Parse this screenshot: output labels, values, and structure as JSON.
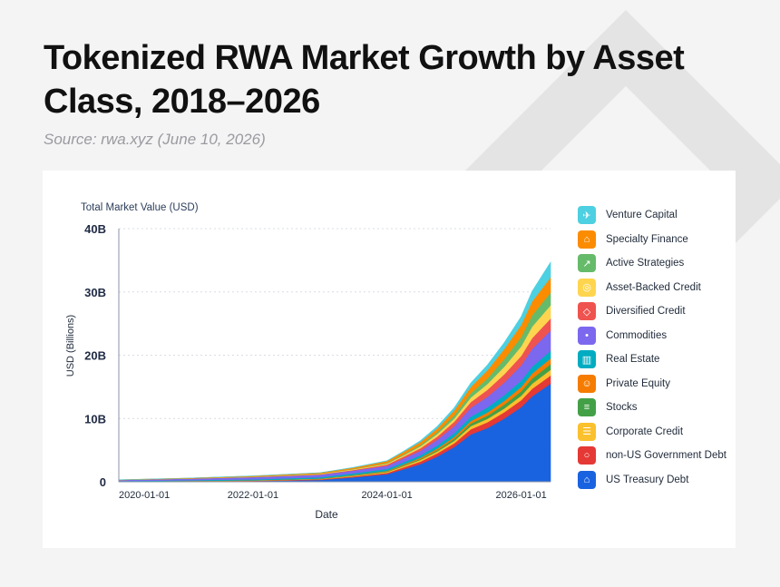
{
  "page": {
    "title": "Tokenized RWA Market Growth by Asset Class, 2018–2026",
    "subtitle": "Source: rwa.xyz (June 10, 2026)"
  },
  "chart_data": {
    "type": "area",
    "stacked": true,
    "title": "Tokenized RWA Market Growth by Asset Class, 2018–2026",
    "subtitle": "Source: rwa.xyz (June 10, 2026)",
    "header_label": "Total Market Value (USD)",
    "xlabel": "Date",
    "ylabel": "USD (Billions)",
    "xlim": [
      "2020-01-01",
      "2026-06-10"
    ],
    "ylim": [
      0,
      40
    ],
    "x_ticks": [
      "2020-01-01",
      "2022-01-01",
      "2024-01-01",
      "2026-01-01"
    ],
    "y_ticks": [
      {
        "value": 0,
        "label": "0"
      },
      {
        "value": 10,
        "label": "10B"
      },
      {
        "value": 20,
        "label": "20B"
      },
      {
        "value": 30,
        "label": "30B"
      },
      {
        "value": 40,
        "label": "40B"
      }
    ],
    "grid": true,
    "legend_position": "right",
    "x": [
      "2020-01-01",
      "2021-01-01",
      "2022-01-01",
      "2023-01-01",
      "2023-07-01",
      "2024-01-01",
      "2024-04-01",
      "2024-07-01",
      "2024-10-01",
      "2025-01-01",
      "2025-04-01",
      "2025-07-01",
      "2025-10-01",
      "2026-01-01",
      "2026-03-01",
      "2026-06-10"
    ],
    "series": [
      {
        "name": "US Treasury Debt",
        "color": "#1a63e0",
        "icon": "bank-icon",
        "values": [
          0.05,
          0.08,
          0.12,
          0.3,
          0.7,
          1.2,
          2.0,
          2.8,
          4.0,
          5.5,
          7.5,
          8.5,
          10.0,
          11.8,
          13.5,
          15.5
        ]
      },
      {
        "name": "non-US Government Debt",
        "color": "#e53935",
        "icon": "globe-icon",
        "values": [
          0.01,
          0.02,
          0.05,
          0.1,
          0.15,
          0.2,
          0.3,
          0.4,
          0.5,
          0.6,
          0.8,
          0.9,
          1.0,
          1.1,
          1.2,
          1.3
        ]
      },
      {
        "name": "Corporate Credit",
        "color": "#fbc02d",
        "icon": "document-icon",
        "values": [
          0.01,
          0.02,
          0.03,
          0.05,
          0.1,
          0.15,
          0.2,
          0.25,
          0.3,
          0.4,
          0.5,
          0.55,
          0.6,
          0.7,
          0.8,
          0.9
        ]
      },
      {
        "name": "Stocks",
        "color": "#43a047",
        "icon": "bar-chart-icon",
        "values": [
          0.0,
          0.0,
          0.01,
          0.02,
          0.05,
          0.08,
          0.1,
          0.15,
          0.2,
          0.3,
          0.4,
          0.5,
          0.6,
          0.7,
          0.8,
          0.9
        ]
      },
      {
        "name": "Private Equity",
        "color": "#f57c00",
        "icon": "people-icon",
        "values": [
          0.01,
          0.02,
          0.03,
          0.05,
          0.08,
          0.1,
          0.15,
          0.2,
          0.25,
          0.3,
          0.4,
          0.5,
          0.6,
          0.7,
          0.8,
          0.9
        ]
      },
      {
        "name": "Real Estate",
        "color": "#00acc1",
        "icon": "building-icon",
        "values": [
          0.05,
          0.1,
          0.15,
          0.2,
          0.25,
          0.3,
          0.35,
          0.4,
          0.5,
          0.6,
          0.7,
          0.8,
          0.9,
          1.0,
          1.1,
          1.2
        ]
      },
      {
        "name": "Commodities",
        "color": "#7b68ee",
        "icon": "droplet-icon",
        "values": [
          0.15,
          0.25,
          0.35,
          0.4,
          0.45,
          0.5,
          0.6,
          0.7,
          0.9,
          1.1,
          1.4,
          1.7,
          2.0,
          2.4,
          2.8,
          3.2
        ]
      },
      {
        "name": "Diversified Credit",
        "color": "#ef5350",
        "icon": "shield-icon",
        "values": [
          0.0,
          0.01,
          0.02,
          0.05,
          0.1,
          0.2,
          0.3,
          0.4,
          0.5,
          0.7,
          0.9,
          1.1,
          1.3,
          1.5,
          1.7,
          1.9
        ]
      },
      {
        "name": "Asset-Backed Credit",
        "color": "#ffd54f",
        "icon": "coins-icon",
        "values": [
          0.01,
          0.02,
          0.05,
          0.08,
          0.1,
          0.15,
          0.2,
          0.3,
          0.4,
          0.5,
          0.7,
          0.9,
          1.2,
          1.5,
          1.8,
          2.1
        ]
      },
      {
        "name": "Active Strategies",
        "color": "#66bb6a",
        "icon": "trend-icon",
        "values": [
          0.0,
          0.0,
          0.01,
          0.02,
          0.05,
          0.1,
          0.15,
          0.2,
          0.3,
          0.5,
          0.7,
          0.9,
          1.2,
          1.5,
          1.8,
          2.0
        ]
      },
      {
        "name": "Specialty Finance",
        "color": "#fb8c00",
        "icon": "institution-icon",
        "values": [
          0.02,
          0.05,
          0.1,
          0.15,
          0.2,
          0.3,
          0.4,
          0.5,
          0.6,
          0.8,
          1.0,
          1.3,
          1.6,
          1.9,
          2.2,
          2.4
        ]
      },
      {
        "name": "Venture Capital",
        "color": "#4dd0e1",
        "icon": "rocket-icon",
        "values": [
          0.0,
          0.0,
          0.01,
          0.02,
          0.03,
          0.05,
          0.1,
          0.2,
          0.3,
          0.4,
          0.6,
          0.8,
          1.0,
          1.3,
          1.6,
          2.4
        ]
      }
    ]
  }
}
